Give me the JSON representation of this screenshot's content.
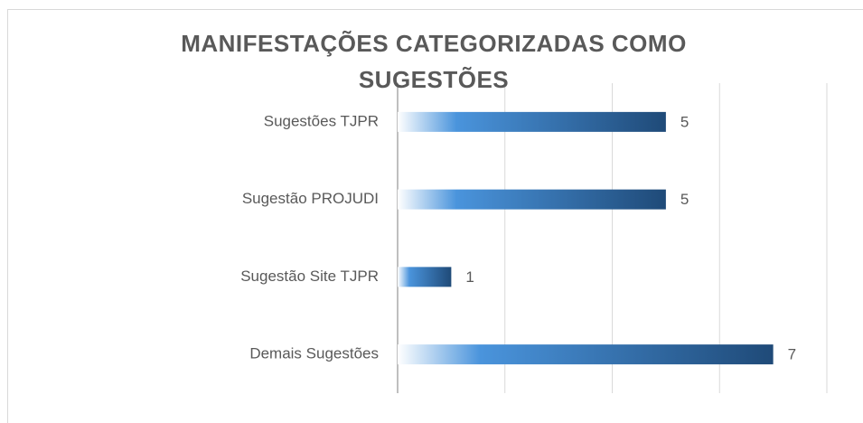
{
  "chart_data": {
    "type": "barh",
    "title": "MANIFESTAÇÕES CATEGORIZADAS COMO SUGESTÕES",
    "categories": [
      "Sugestões TJPR",
      "Sugestão PROJUDI",
      "Sugestão Site TJPR",
      "Demais Sugestões"
    ],
    "values": [
      5,
      5,
      1,
      7
    ],
    "gradient": [
      "#ffffff",
      "#4a94dc",
      "#1f4a78"
    ],
    "xlim": [
      0,
      8
    ],
    "xticks": [
      0,
      2,
      4,
      6,
      8
    ],
    "grid": true
  }
}
